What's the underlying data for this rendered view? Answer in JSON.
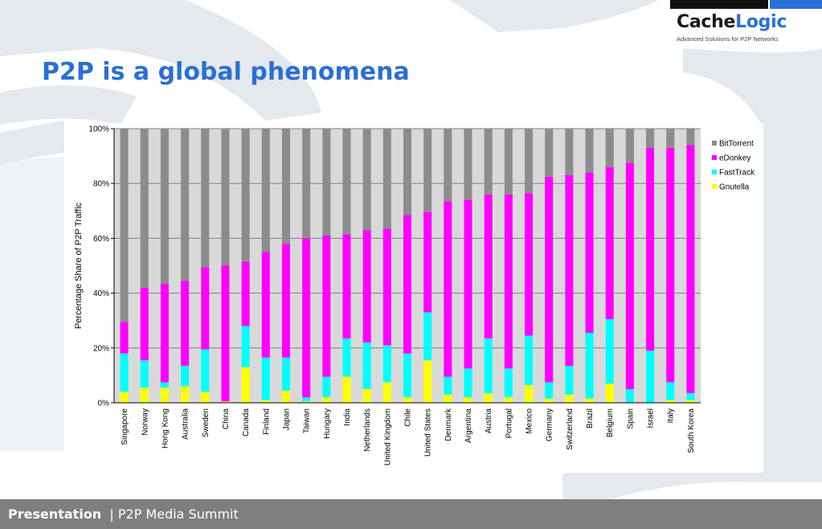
{
  "logo": {
    "word_part1": "Cache",
    "word_part2": "Logic",
    "tagline": "Advanced Solutions for P2P Networks"
  },
  "slide": {
    "title": "P2P is a global phenomena"
  },
  "footer": {
    "main": "Presentation",
    "separator": "|",
    "sub": "P2P Media Summit"
  },
  "colors": {
    "brand_blue": "#2a6fd6",
    "bittorrent": "#8c8c8c",
    "edonkey": "#ff00ff",
    "fasttrack": "#00ffff",
    "gnutella": "#ffff00",
    "plot_area": "#d9d9d9",
    "footer": "#7f7f7f"
  },
  "chart_data": {
    "type": "bar",
    "stacked": true,
    "ylabel": "Percentage Share of P2P Traffic",
    "ylim": [
      0,
      100
    ],
    "y_ticks": [
      "0%",
      "20%",
      "40%",
      "60%",
      "80%",
      "100%"
    ],
    "grid": true,
    "legend_position": "right",
    "categories": [
      "Singapore",
      "Norway",
      "Hong Kong",
      "Australia",
      "Sweden",
      "China",
      "Canada",
      "Finland",
      "Japan",
      "Taiwan",
      "Hungary",
      "India",
      "Netherlands",
      "United Kingdom",
      "Chile",
      "United States",
      "Denmark",
      "Argentina",
      "Austria",
      "Portugal",
      "Mexico",
      "Germany",
      "Switzerland",
      "Brazil",
      "Belgium",
      "Spain",
      "Israel",
      "Italy",
      "South Korea"
    ],
    "series": [
      {
        "name": "Gnutella",
        "color": "#ffff00",
        "values": [
          4,
          5.5,
          5.5,
          6,
          4,
          0.5,
          13,
          1,
          4.5,
          0.5,
          2,
          9.5,
          5,
          7.5,
          2,
          15.5,
          3,
          2,
          3.5,
          2,
          6.5,
          1.5,
          3,
          1.5,
          7,
          0,
          0,
          1,
          1
        ]
      },
      {
        "name": "FastTrack",
        "color": "#00ffff",
        "values": [
          14,
          10,
          2,
          7.5,
          15.5,
          0,
          15,
          15.5,
          12,
          1.5,
          7.5,
          14,
          17,
          13.5,
          16,
          17.5,
          6.5,
          10.5,
          20,
          10.5,
          18,
          6,
          10.5,
          24,
          23.5,
          5,
          19,
          6.5,
          2.5
        ]
      },
      {
        "name": "eDonkey",
        "color": "#ff00ff",
        "values": [
          11.5,
          26.5,
          36,
          31,
          30,
          49.5,
          23.5,
          38.5,
          41.5,
          58,
          51.5,
          38,
          41,
          42.5,
          50.5,
          36.5,
          64,
          61.5,
          52.5,
          63.5,
          52,
          75,
          69.5,
          58.5,
          55.5,
          82.5,
          74,
          85.5,
          90.5
        ]
      },
      {
        "name": "BitTorrent",
        "color": "#8c8c8c",
        "values": [
          70.5,
          58,
          56.5,
          55.5,
          50.5,
          50,
          48.5,
          45,
          42,
          40,
          39,
          38.5,
          37,
          36.5,
          31.5,
          30.5,
          26.5,
          26,
          24,
          24,
          23.5,
          17.5,
          17,
          16,
          14,
          12.5,
          7,
          7,
          6
        ]
      }
    ],
    "legend_order": [
      "BitTorrent",
      "eDonkey",
      "FastTrack",
      "Gnutella"
    ]
  }
}
